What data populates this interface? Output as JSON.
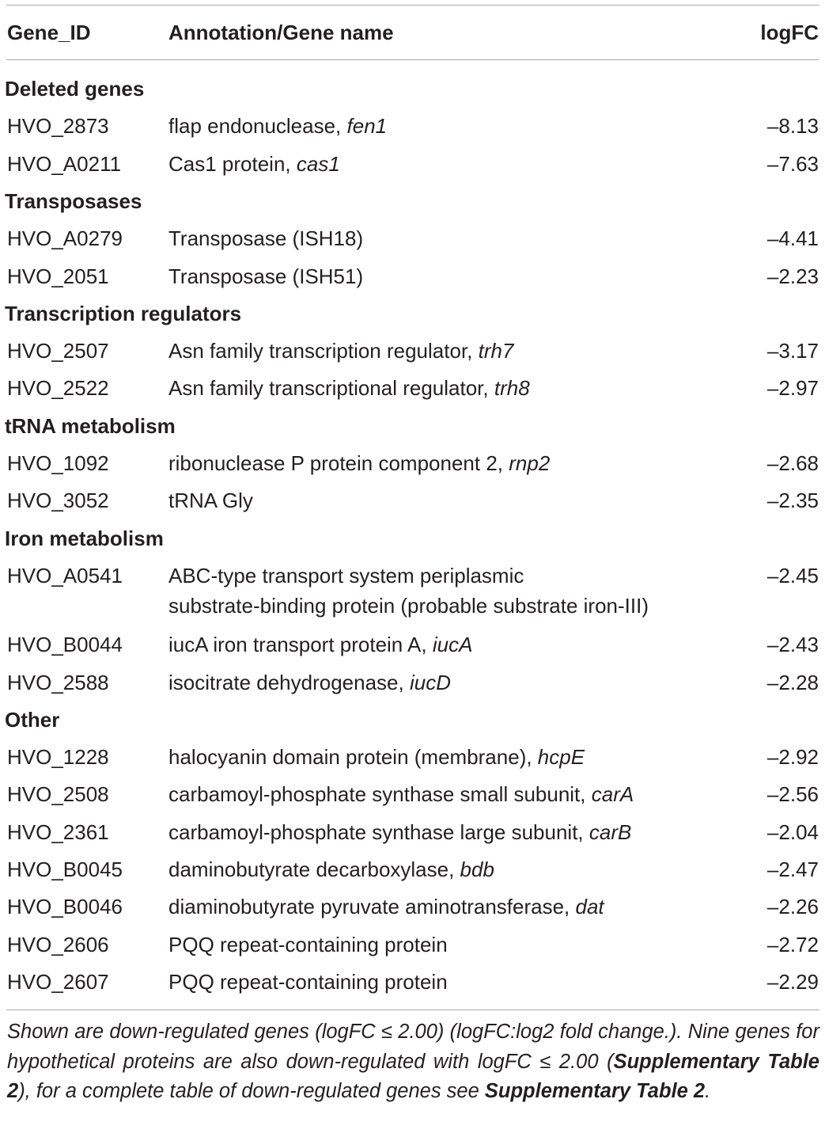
{
  "table": {
    "headers": {
      "gene_id": "Gene_ID",
      "annotation": "Annotation/Gene name",
      "logfc": "logFC"
    },
    "sections": [
      {
        "title": "Deleted genes",
        "rows": [
          {
            "id": "HVO_2873",
            "annotation": "flap endonuclease, ",
            "gene": "fen1",
            "logfc": "–8.13"
          },
          {
            "id": "HVO_A0211",
            "annotation": "Cas1 protein, ",
            "gene": "cas1",
            "logfc": "–7.63"
          }
        ]
      },
      {
        "title": "Transposases",
        "rows": [
          {
            "id": "HVO_A0279",
            "annotation": "Transposase (ISH18)",
            "gene": "",
            "logfc": "–4.41"
          },
          {
            "id": "HVO_2051",
            "annotation": "Transposase (ISH51)",
            "gene": "",
            "logfc": "–2.23"
          }
        ]
      },
      {
        "title": "Transcription regulators",
        "rows": [
          {
            "id": "HVO_2507",
            "annotation": "Asn family transcription regulator, ",
            "gene": "trh7",
            "logfc": "–3.17"
          },
          {
            "id": "HVO_2522",
            "annotation": "Asn family transcriptional regulator, ",
            "gene": "trh8",
            "logfc": "–2.97"
          }
        ]
      },
      {
        "title": "tRNA metabolism",
        "rows": [
          {
            "id": "HVO_1092",
            "annotation": "ribonuclease P protein component 2, ",
            "gene": "rnp2",
            "logfc": "–2.68"
          },
          {
            "id": "HVO_3052",
            "annotation": "tRNA Gly",
            "gene": "",
            "logfc": "–2.35"
          }
        ]
      },
      {
        "title": "Iron metabolism",
        "rows": [
          {
            "id": "HVO_A0541",
            "annotation": "ABC-type transport system periplasmic",
            "annotation_line2": "substrate-binding protein (probable substrate iron-III)",
            "gene": "",
            "logfc": "–2.45"
          },
          {
            "id": "HVO_B0044",
            "annotation": "iucA iron transport protein A, ",
            "gene": "iucA",
            "logfc": "–2.43"
          },
          {
            "id": "HVO_2588",
            "annotation": "isocitrate dehydrogenase, ",
            "gene": "iucD",
            "logfc": "–2.28"
          }
        ]
      },
      {
        "title": "Other",
        "rows": [
          {
            "id": "HVO_1228",
            "annotation": "halocyanin domain protein (membrane), ",
            "gene": "hcpE",
            "logfc": "–2.92"
          },
          {
            "id": "HVO_2508",
            "annotation": "carbamoyl-phosphate synthase small subunit, ",
            "gene": "carA",
            "logfc": "–2.56"
          },
          {
            "id": "HVO_2361",
            "annotation": "carbamoyl-phosphate synthase large subunit, ",
            "gene": "carB",
            "logfc": "–2.04"
          },
          {
            "id": "HVO_B0045",
            "annotation": "daminobutyrate decarboxylase, ",
            "gene": "bdb",
            "logfc": "–2.47"
          },
          {
            "id": "HVO_B0046",
            "annotation": "diaminobutyrate pyruvate aminotransferase, ",
            "gene": "dat",
            "logfc": "–2.26"
          },
          {
            "id": "HVO_2606",
            "annotation": "PQQ repeat-containing protein",
            "gene": "",
            "logfc": "–2.72"
          },
          {
            "id": "HVO_2607",
            "annotation": "PQQ repeat-containing protein",
            "gene": "",
            "logfc": "–2.29"
          }
        ]
      }
    ]
  },
  "footnote": {
    "part1": "Shown are down-regulated genes (logFC ≤ 2.00) (logFC:log2 fold change.). Nine genes for hypothetical proteins are also down-regulated with logFC ≤ 2.00 (",
    "ref1": "Supplementary Table 2",
    "part2": "), for a complete table of down-regulated genes see ",
    "ref2": "Supplementary Table 2",
    "part3": "."
  }
}
